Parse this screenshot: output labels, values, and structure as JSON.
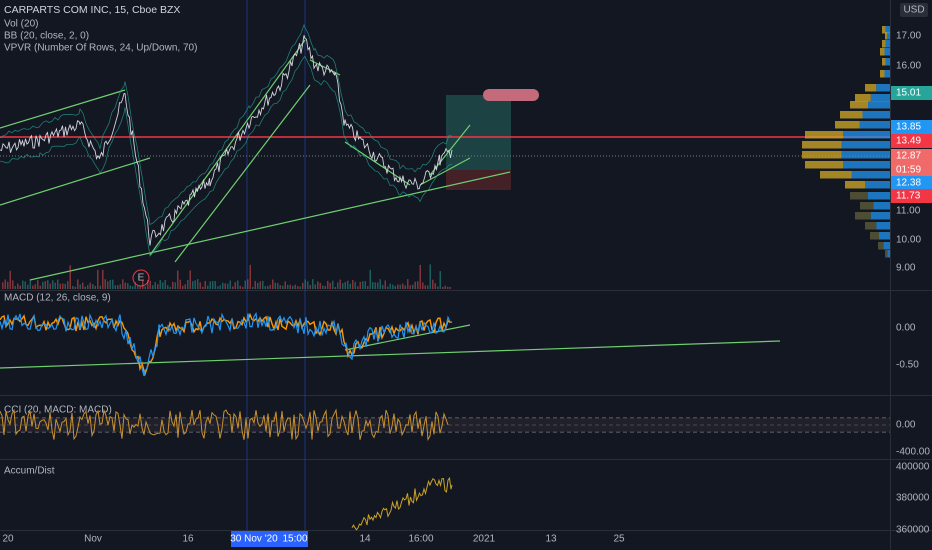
{
  "header": {
    "title": "CARPARTS COM INC, 15, Cboe BZX",
    "currency": "USD"
  },
  "main_indicators": [
    "Vol (20)",
    "BB (20, close, 2, 0)",
    "VPVR (Number Of Rows, 24, Up/Down, 70)"
  ],
  "earnings_marker": "E",
  "price_axis": [
    "17.00",
    "16.00",
    "15.01",
    "13.85",
    "13.49",
    "12.87",
    "01:59",
    "12.38",
    "11.73",
    "11.00",
    "10.00",
    "9.00"
  ],
  "macd": {
    "label": "MACD (12, 26, close, 9)",
    "axis": [
      "0.00",
      "-0.50"
    ]
  },
  "cci": {
    "label": "CCI (20, MACD: MACD)",
    "axis": [
      "0.00",
      "-400.00"
    ]
  },
  "accum": {
    "label": "Accum/Dist",
    "axis": [
      "400000",
      "380000",
      "360000"
    ]
  },
  "time_axis": [
    "20",
    "Nov",
    "16",
    "30 Nov '20",
    "15:00",
    "14",
    "16:00",
    "2021",
    "13",
    "25"
  ]
}
